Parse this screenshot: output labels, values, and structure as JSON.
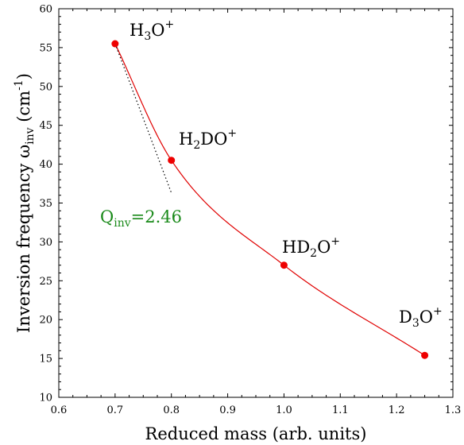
{
  "chart_data": {
    "type": "scatter",
    "xlabel": "Reduced mass (arb. units)",
    "ylabel": "Inversion frequency ω",
    "ylabel_sub": "inv",
    "ylabel_unit_open": " (cm",
    "ylabel_unit_sup": "-1",
    "ylabel_unit_close": ")",
    "xlim": [
      0.6,
      1.3
    ],
    "ylim": [
      10,
      60
    ],
    "xticks": [
      0.6,
      0.7,
      0.8,
      0.9,
      1.0,
      1.1,
      1.2,
      1.3
    ],
    "xtick_labels": [
      "0.6",
      "0.7",
      "0.8",
      "0.9",
      "1.0",
      "1.1",
      "1.2",
      "1.3"
    ],
    "yticks": [
      10,
      15,
      20,
      25,
      30,
      35,
      40,
      45,
      50,
      55,
      60
    ],
    "ytick_labels": [
      "10",
      "15",
      "20",
      "25",
      "30",
      "35",
      "40",
      "45",
      "50",
      "55",
      "60"
    ],
    "grid": false,
    "points": [
      {
        "x": 0.7,
        "y": 55.5,
        "label_main": "H",
        "label_sub": "3",
        "label_rest": "O",
        "label_sup": "+"
      },
      {
        "x": 0.8,
        "y": 40.5,
        "label_main": "H",
        "label_sub": "2",
        "label_rest": "DO",
        "label_sup": "+"
      },
      {
        "x": 1.0,
        "y": 27.0,
        "label_main": "HD",
        "label_sub": "2",
        "label_rest": "O",
        "label_sup": "+"
      },
      {
        "x": 1.25,
        "y": 15.4,
        "label_main": "D",
        "label_sub": "3",
        "label_rest": "O",
        "label_sup": "+"
      }
    ],
    "fit_curve": {
      "color": "#e00000"
    },
    "tangent_line": {
      "x": [
        0.7,
        0.8
      ],
      "y": [
        55.5,
        36.3
      ],
      "color": "#000000",
      "style": "dotted"
    },
    "annotation": {
      "main": "Q",
      "sub": "inv",
      "rest": "=2.46",
      "color": "#1a8a1a"
    },
    "marker_color": "#ee0000"
  }
}
